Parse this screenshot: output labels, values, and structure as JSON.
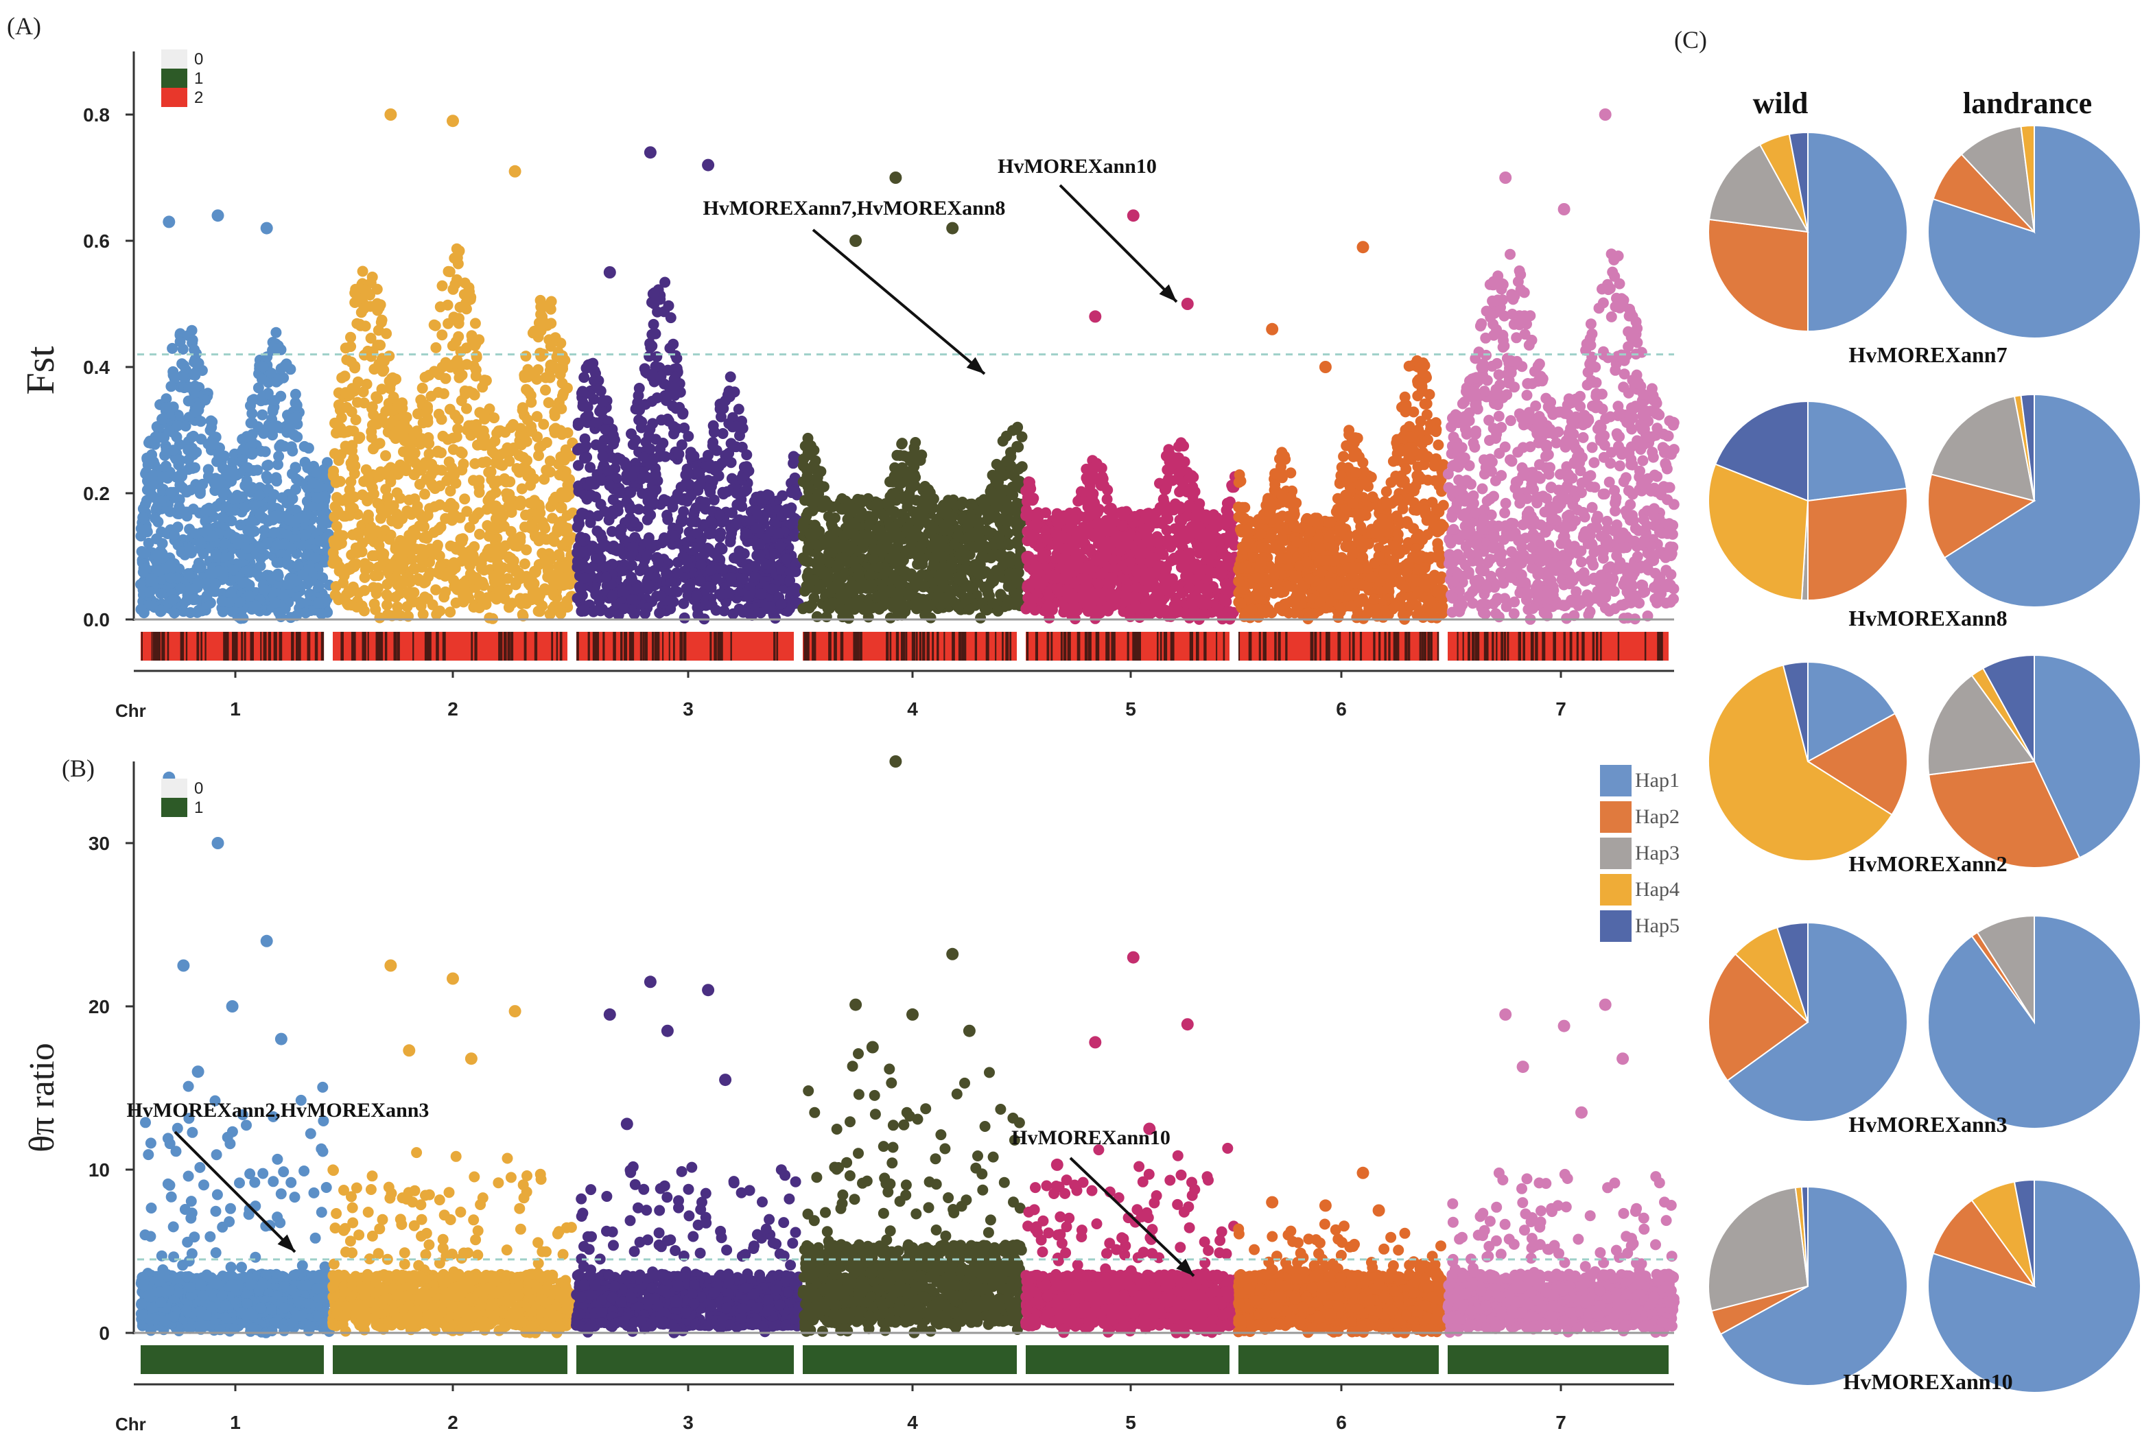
{
  "panel_labels": {
    "a": "(A)",
    "b": "(B)",
    "c": "(C)"
  },
  "chart_data": [
    {
      "type": "scatter",
      "title": "(A)",
      "ylabel": "Fst",
      "xlabel": "Chr",
      "ylim": [
        0,
        0.9
      ],
      "yticks": [
        "0.0",
        "0.2",
        "0.4",
        "0.6",
        "0.8"
      ],
      "ytick_values": [
        0,
        0.2,
        0.4,
        0.6,
        0.8
      ],
      "threshold": 0.42,
      "chromosomes": [
        "1",
        "2",
        "3",
        "4",
        "5",
        "6",
        "7"
      ],
      "series": [
        {
          "name": "1",
          "color": "#5b8fc7",
          "base": 0.12,
          "peak": 0.64,
          "max_points": [
            0.63,
            0.64,
            0.62
          ]
        },
        {
          "name": "2",
          "color": "#e8a93a",
          "base": 0.18,
          "peak": 0.8,
          "max_points": [
            0.8,
            0.79,
            0.71
          ]
        },
        {
          "name": "3",
          "color": "#4a2f82",
          "base": 0.12,
          "peak": 0.74,
          "max_points": [
            0.74,
            0.72,
            0.55
          ]
        },
        {
          "name": "4",
          "color": "#4a4e2a",
          "base": 0.15,
          "peak": 0.7,
          "max_points": [
            0.7,
            0.62,
            0.6
          ]
        },
        {
          "name": "5",
          "color": "#c42e6e",
          "base": 0.1,
          "peak": 0.64,
          "max_points": [
            0.64,
            0.5,
            0.48
          ]
        },
        {
          "name": "6",
          "color": "#e06a2b",
          "base": 0.1,
          "peak": 0.6,
          "max_points": [
            0.59,
            0.46,
            0.4
          ]
        },
        {
          "name": "7",
          "color": "#d27bb4",
          "base": 0.15,
          "peak": 0.8,
          "max_points": [
            0.8,
            0.7,
            0.65
          ]
        }
      ],
      "annotations": [
        {
          "text": "HvMOREXann10",
          "chr": "5"
        },
        {
          "text": "HvMOREXann7,HvMOREXann8",
          "chr": "4"
        }
      ],
      "density_legend": [
        {
          "label": "0",
          "color": "#eeeeee"
        },
        {
          "label": "1",
          "color": "#2d5a27"
        },
        {
          "label": "2",
          "color": "#e8372b"
        }
      ]
    },
    {
      "type": "scatter",
      "title": "(B)",
      "ylabel": "θπ ratio",
      "xlabel": "Chr",
      "ylim": [
        0,
        35
      ],
      "yticks": [
        "0",
        "10",
        "20",
        "30"
      ],
      "ytick_values": [
        0,
        10,
        20,
        30
      ],
      "threshold": 4.5,
      "chromosomes": [
        "1",
        "2",
        "3",
        "4",
        "5",
        "6",
        "7"
      ],
      "series": [
        {
          "name": "1",
          "color": "#5b8fc7",
          "base": 2,
          "peak": 34,
          "outliers": [
            34,
            30,
            24,
            22.5,
            20,
            18,
            16
          ]
        },
        {
          "name": "2",
          "color": "#e8a93a",
          "base": 2,
          "peak": 22.5,
          "outliers": [
            22.5,
            21.7,
            19.7,
            17.3,
            16.8
          ]
        },
        {
          "name": "3",
          "color": "#4a2f82",
          "base": 2,
          "peak": 21.5,
          "outliers": [
            21.5,
            21,
            19.5,
            18.5,
            15.5,
            12.8
          ]
        },
        {
          "name": "4",
          "color": "#4a4e2a",
          "base": 3,
          "peak": 35,
          "outliers": [
            35,
            23.2,
            20.1,
            19.5,
            18.5,
            17.5
          ]
        },
        {
          "name": "5",
          "color": "#c42e6e",
          "base": 2,
          "peak": 23,
          "outliers": [
            23,
            18.9,
            17.8,
            12.5,
            10.3
          ]
        },
        {
          "name": "6",
          "color": "#e06a2b",
          "base": 2,
          "peak": 9.8,
          "outliers": [
            9.8,
            8,
            7.8,
            7.5
          ]
        },
        {
          "name": "7",
          "color": "#d27bb4",
          "base": 2,
          "peak": 20.1,
          "outliers": [
            20.1,
            19.5,
            18.8,
            16.8,
            16.3,
            13.5
          ]
        }
      ],
      "annotations": [
        {
          "text": "HvMOREXann2,HvMOREXann3",
          "chr": "1"
        },
        {
          "text": "HvMOREXann10",
          "chr": "5"
        }
      ],
      "density_legend": [
        {
          "label": "0",
          "color": "#eeeeee"
        },
        {
          "label": "1",
          "color": "#2d5a27"
        }
      ]
    },
    {
      "type": "pie",
      "title": "(C)",
      "columns": [
        "wild",
        "landrance"
      ],
      "categories": [
        "Hap1",
        "Hap2",
        "Hap3",
        "Hap4",
        "Hap5"
      ],
      "colors": [
        "#6c93c8",
        "#e07a3e",
        "#a6a2a0",
        "#efac37",
        "#5268a9"
      ],
      "genes": [
        {
          "name": "HvMOREXann7",
          "wild": [
            0.5,
            0.27,
            0.15,
            0.05,
            0.03
          ],
          "landrance": [
            0.8,
            0.08,
            0.1,
            0.02,
            0.0
          ]
        },
        {
          "name": "HvMOREXann8",
          "wild": [
            0.23,
            0.27,
            0.01,
            0.3,
            0.19
          ],
          "landrance": [
            0.66,
            0.13,
            0.18,
            0.01,
            0.02
          ]
        },
        {
          "name": "HvMOREXann2",
          "wild": [
            0.17,
            0.17,
            0.0,
            0.62,
            0.04
          ],
          "landrance": [
            0.43,
            0.3,
            0.17,
            0.02,
            0.08
          ]
        },
        {
          "name": "HvMOREXann3",
          "wild": [
            0.65,
            0.22,
            0.0,
            0.08,
            0.05
          ],
          "landrance": [
            0.9,
            0.01,
            0.09,
            0.0,
            0.0
          ]
        },
        {
          "name": "HvMOREXann10",
          "wild": [
            0.67,
            0.04,
            0.27,
            0.01,
            0.01
          ],
          "landrance": [
            0.8,
            0.1,
            0.0,
            0.07,
            0.03
          ]
        }
      ]
    }
  ]
}
